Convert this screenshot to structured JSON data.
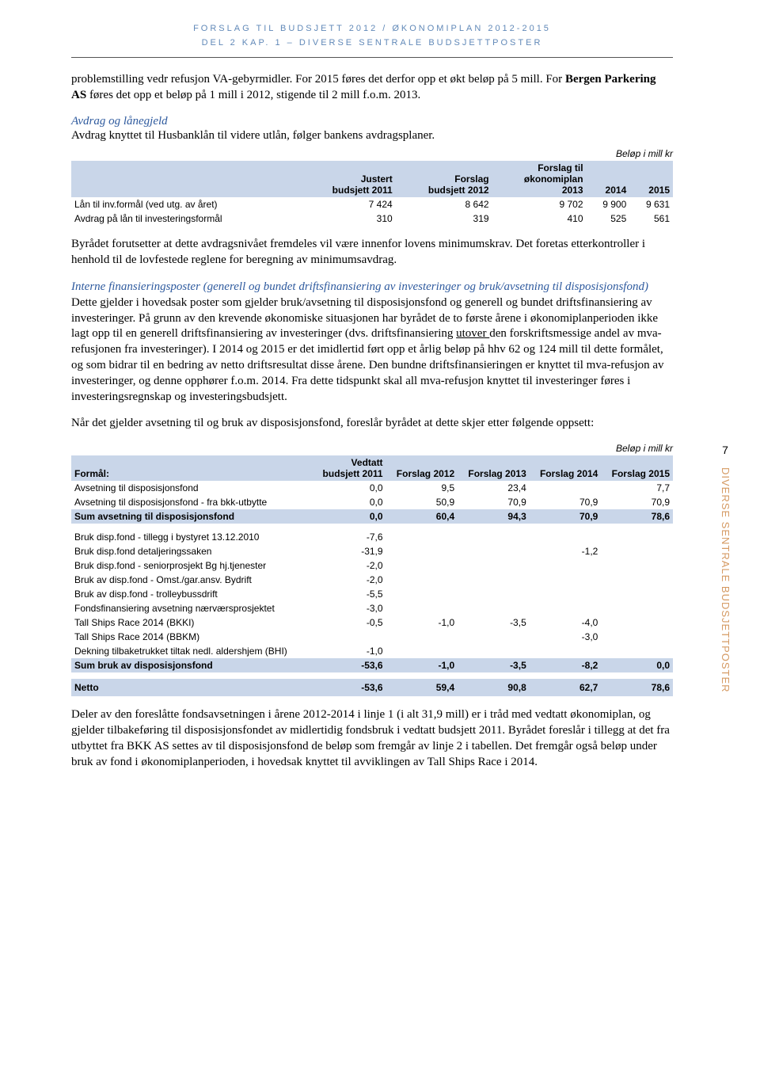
{
  "header": {
    "line1": "FORSLAG TIL BUDSJETT 2012 / ØKONOMIPLAN 2012-2015",
    "line2": "DEL 2  KAP. 1 – DIVERSE SENTRALE BUDSJETTPOSTER"
  },
  "side": {
    "page_number": "7",
    "vertical_label": "DIVERSE SENTRALE BUDSJETTPOSTER"
  },
  "para1_a": "problemstilling vedr refusjon VA-gebyrmidler. For 2015 føres det derfor opp et økt beløp på 5 mill. For ",
  "para1_b_bold": "Bergen Parkering AS",
  "para1_c": " føres det opp et beløp på 1 mill i 2012, stigende til 2 mill f.o.m. 2013.",
  "subhead1": "Avdrag og lånegjeld",
  "para2": "Avdrag knyttet til Husbanklån til videre utlån, følger bankens avdragsplaner.",
  "unit_caption": "Beløp i mill kr",
  "table1": {
    "headers": {
      "col1": "",
      "col2a": "Justert",
      "col2b": "budsjett 2011",
      "col3a": "Forslag",
      "col3b": "budsjett 2012",
      "col4a": "Forslag til",
      "col4b": "økonomiplan",
      "col4c": "2013",
      "col5": "2014",
      "col6": "2015"
    },
    "rows": [
      {
        "label": "Lån til inv.formål (ved utg. av året)",
        "c2": "7 424",
        "c3": "8 642",
        "c4": "9 702",
        "c5": "9 900",
        "c6": "9 631"
      },
      {
        "label": "Avdrag på lån til investeringsformål",
        "c2": "310",
        "c3": "319",
        "c4": "410",
        "c5": "525",
        "c6": "561"
      }
    ]
  },
  "para3": "Byrådet forutsetter at dette avdragsnivået fremdeles vil være innenfor lovens minimumskrav. Det foretas etterkontroller i henhold til de lovfestede reglene for beregning av minimumsavdrag.",
  "para4_a_italic": "Interne finansieringsposter (generell og bundet driftsfinansiering av investeringer og bruk/avsetning til disposisjonsfond)",
  "para4_b": "Dette gjelder i hovedsak poster som gjelder bruk/avsetning til disposisjonsfond og generell og bundet driftsfinansiering av investeringer. På grunn av den krevende økonomiske situasjonen har byrådet de to første årene i økonomiplanperioden ikke lagt opp til en generell driftsfinansiering av investeringer (dvs. driftsfinansiering ",
  "para4_b_u": "utover ",
  "para4_b2": "den forskriftsmessige andel av mva-refusjonen fra investeringer). I 2014 og 2015 er det imidlertid ført opp et årlig beløp på hhv 62 og 124 mill til dette formålet, og som bidrar til en bedring av netto driftsresultat disse årene. Den bundne driftsfinansieringen er knyttet til mva-refusjon av investeringer, og denne opphører f.o.m. 2014. Fra dette tidspunkt skal all mva-refusjon knyttet til investeringer føres i investeringsregnskap og investeringsbudsjett.",
  "para5": "Når det gjelder avsetning til og bruk av disposisjonsfond, foreslår byrådet at dette skjer etter følgende oppsett:",
  "table2": {
    "headers": {
      "c1": "Formål:",
      "c2a": "Vedtatt",
      "c2b": "budsjett 2011",
      "c3": "Forslag 2012",
      "c4": "Forslag 2013",
      "c5": "Forslag 2014",
      "c6": "Forslag 2015"
    },
    "rows_top": [
      {
        "label": "Avsetning til disposisjonsfond",
        "c2": "0,0",
        "c3": "9,5",
        "c4": "23,4",
        "c5": "",
        "c6": "7,7"
      },
      {
        "label": "Avsetning til disposisjonsfond - fra bkk-utbytte",
        "c2": "0,0",
        "c3": "50,9",
        "c4": "70,9",
        "c5": "70,9",
        "c6": "70,9"
      }
    ],
    "sum_top": {
      "label": "Sum avsetning til disposisjonsfond",
      "c2": "0,0",
      "c3": "60,4",
      "c4": "94,3",
      "c5": "70,9",
      "c6": "78,6"
    },
    "rows_mid": [
      {
        "label": "Bruk disp.fond - tillegg i bystyret 13.12.2010",
        "c2": "-7,6",
        "c3": "",
        "c4": "",
        "c5": "",
        "c6": ""
      },
      {
        "label": "Bruk disp.fond detaljeringssaken",
        "c2": "-31,9",
        "c3": "",
        "c4": "",
        "c5": "-1,2",
        "c6": ""
      },
      {
        "label": "Bruk disp.fond - seniorprosjekt Bg hj.tjenester",
        "c2": "-2,0",
        "c3": "",
        "c4": "",
        "c5": "",
        "c6": ""
      },
      {
        "label": "Bruk av disp.fond - Omst./gar.ansv. Bydrift",
        "c2": "-2,0",
        "c3": "",
        "c4": "",
        "c5": "",
        "c6": ""
      },
      {
        "label": "Bruk av disp.fond - trolleybussdrift",
        "c2": "-5,5",
        "c3": "",
        "c4": "",
        "c5": "",
        "c6": ""
      },
      {
        "label": "Fondsfinansiering avsetning nærværsprosjektet",
        "c2": "-3,0",
        "c3": "",
        "c4": "",
        "c5": "",
        "c6": ""
      },
      {
        "label": "Tall Ships Race 2014 (BKKI)",
        "c2": "-0,5",
        "c3": "-1,0",
        "c4": "-3,5",
        "c5": "-4,0",
        "c6": ""
      },
      {
        "label": "Tall Ships Race 2014 (BBKM)",
        "c2": "",
        "c3": "",
        "c4": "",
        "c5": "-3,0",
        "c6": ""
      },
      {
        "label": "Dekning tilbaketrukket tiltak nedl. aldershjem (BHI)",
        "c2": "-1,0",
        "c3": "",
        "c4": "",
        "c5": "",
        "c6": ""
      }
    ],
    "sum_mid": {
      "label": "Sum bruk av disposisjonsfond",
      "c2": "-53,6",
      "c3": "-1,0",
      "c4": "-3,5",
      "c5": "-8,2",
      "c6": "0,0"
    },
    "netto": {
      "label": "Netto",
      "c2": "-53,6",
      "c3": "59,4",
      "c4": "90,8",
      "c5": "62,7",
      "c6": "78,6"
    }
  },
  "para6": "Deler av den foreslåtte fondsavsetningen i årene 2012-2014 i linje 1 (i alt 31,9 mill) er i tråd med vedtatt økonomiplan, og gjelder tilbakeføring til disposisjonsfondet av midlertidig fondsbruk i vedtatt budsjett 2011. Byrådet foreslår i tillegg at det fra utbyttet fra BKK AS settes av til disposisjonsfond de beløp som fremgår av linje 2 i tabellen. Det fremgår også beløp under bruk av fond i økonomiplanperioden, i hovedsak knyttet til avviklingen av Tall Ships Race i 2014."
}
